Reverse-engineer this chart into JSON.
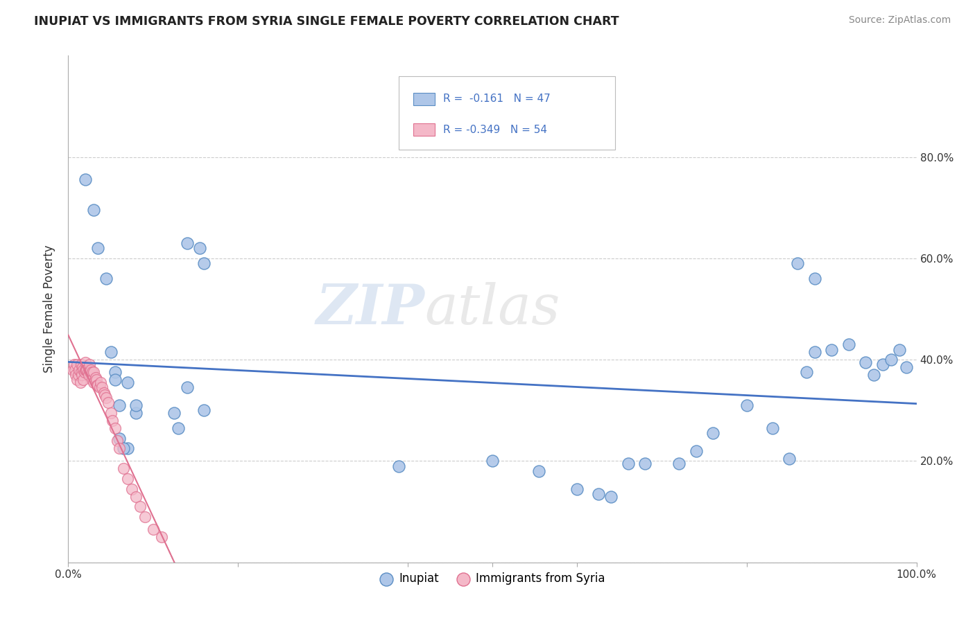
{
  "title": "INUPIAT VS IMMIGRANTS FROM SYRIA SINGLE FEMALE POVERTY CORRELATION CHART",
  "source": "Source: ZipAtlas.com",
  "ylabel": "Single Female Poverty",
  "watermark_zip": "ZIP",
  "watermark_atlas": "atlas",
  "legend_r1": "R =  -0.161",
  "legend_n1": "N = 47",
  "legend_r2": "R = -0.349",
  "legend_n2": "N = 54",
  "legend_label1": "Inupiat",
  "legend_label2": "Immigrants from Syria",
  "xlim": [
    0,
    1.0
  ],
  "ylim": [
    0,
    1.0
  ],
  "color_blue_face": "#aec6e8",
  "color_blue_edge": "#5b8ec4",
  "color_pink_face": "#f4b8c8",
  "color_pink_edge": "#e07090",
  "line_blue": "#4472c4",
  "line_pink": "#e07090",
  "inupiat_x": [
    0.02,
    0.03,
    0.035,
    0.045,
    0.05,
    0.055,
    0.06,
    0.07,
    0.08,
    0.06,
    0.07,
    0.08,
    0.14,
    0.155,
    0.16,
    0.14,
    0.16,
    0.13,
    0.055,
    0.065,
    0.125,
    0.39,
    0.5,
    0.555,
    0.6,
    0.625,
    0.64,
    0.66,
    0.68,
    0.72,
    0.74,
    0.76,
    0.8,
    0.83,
    0.85,
    0.87,
    0.88,
    0.9,
    0.92,
    0.94,
    0.95,
    0.96,
    0.97,
    0.98,
    0.988,
    0.88,
    0.86
  ],
  "inupiat_y": [
    0.755,
    0.695,
    0.62,
    0.56,
    0.415,
    0.375,
    0.31,
    0.355,
    0.295,
    0.245,
    0.225,
    0.31,
    0.63,
    0.62,
    0.59,
    0.345,
    0.3,
    0.265,
    0.36,
    0.225,
    0.295,
    0.19,
    0.2,
    0.18,
    0.145,
    0.135,
    0.13,
    0.195,
    0.195,
    0.195,
    0.22,
    0.255,
    0.31,
    0.265,
    0.205,
    0.375,
    0.415,
    0.42,
    0.43,
    0.395,
    0.37,
    0.39,
    0.4,
    0.42,
    0.385,
    0.56,
    0.59
  ],
  "syria_x": [
    0.005,
    0.007,
    0.008,
    0.009,
    0.01,
    0.01,
    0.012,
    0.013,
    0.014,
    0.015,
    0.015,
    0.016,
    0.017,
    0.018,
    0.018,
    0.019,
    0.02,
    0.02,
    0.021,
    0.022,
    0.023,
    0.024,
    0.025,
    0.025,
    0.026,
    0.027,
    0.028,
    0.028,
    0.03,
    0.03,
    0.032,
    0.033,
    0.034,
    0.035,
    0.037,
    0.038,
    0.04,
    0.042,
    0.043,
    0.045,
    0.047,
    0.05,
    0.052,
    0.055,
    0.058,
    0.06,
    0.065,
    0.07,
    0.075,
    0.08,
    0.085,
    0.09,
    0.1,
    0.11
  ],
  "syria_y": [
    0.38,
    0.39,
    0.38,
    0.37,
    0.39,
    0.36,
    0.37,
    0.38,
    0.355,
    0.39,
    0.375,
    0.37,
    0.385,
    0.38,
    0.36,
    0.375,
    0.38,
    0.395,
    0.38,
    0.38,
    0.375,
    0.37,
    0.38,
    0.39,
    0.375,
    0.38,
    0.375,
    0.36,
    0.375,
    0.355,
    0.365,
    0.36,
    0.35,
    0.35,
    0.345,
    0.355,
    0.345,
    0.335,
    0.33,
    0.325,
    0.315,
    0.295,
    0.28,
    0.265,
    0.24,
    0.225,
    0.185,
    0.165,
    0.145,
    0.13,
    0.11,
    0.09,
    0.065,
    0.05
  ]
}
